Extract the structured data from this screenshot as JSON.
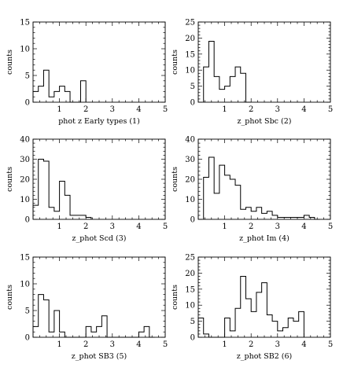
{
  "chart_data": [
    {
      "type": "histogram",
      "xlabel": "phot z Early types (1)",
      "ylabel": "counts",
      "xlim": [
        0,
        5
      ],
      "ylim": [
        0,
        15
      ],
      "xticks": [
        1,
        2,
        3,
        4,
        5
      ],
      "yticks": [
        0,
        5,
        10,
        15
      ],
      "bin_width": 0.2,
      "bin_start": 0.0,
      "values": [
        2,
        3,
        6,
        1,
        2,
        3,
        2,
        0,
        0,
        4
      ]
    },
    {
      "type": "histogram",
      "xlabel": "z_phot Sbc (2)",
      "ylabel": "counts",
      "xlim": [
        0,
        5
      ],
      "ylim": [
        0,
        25
      ],
      "xticks": [
        1,
        2,
        3,
        4,
        5
      ],
      "yticks": [
        0,
        5,
        10,
        15,
        20,
        25
      ],
      "bin_width": 0.2,
      "bin_start": 0.2,
      "values": [
        11,
        19,
        8,
        4,
        5,
        8,
        11,
        9,
        0
      ]
    },
    {
      "type": "histogram",
      "xlabel": "z_phot Scd (3)",
      "ylabel": "counts",
      "xlim": [
        0,
        5
      ],
      "ylim": [
        0,
        40
      ],
      "xticks": [
        1,
        2,
        3,
        4,
        5
      ],
      "yticks": [
        0,
        10,
        20,
        30,
        40
      ],
      "bin_width": 0.2,
      "bin_start": 0.0,
      "values": [
        7,
        30,
        29,
        6,
        4,
        19,
        12,
        2,
        2,
        2,
        1
      ]
    },
    {
      "type": "histogram",
      "xlabel": "z_phot Im (4)",
      "ylabel": "counts",
      "xlim": [
        0,
        5
      ],
      "ylim": [
        0,
        40
      ],
      "xticks": [
        1,
        2,
        3,
        4,
        5
      ],
      "yticks": [
        0,
        10,
        20,
        30,
        40
      ],
      "bin_width": 0.2,
      "bin_start": 0.2,
      "values": [
        21,
        31,
        13,
        27,
        22,
        20,
        17,
        5,
        6,
        4,
        6,
        3,
        4,
        2,
        1,
        1,
        1,
        1,
        1,
        2,
        1,
        0
      ]
    },
    {
      "type": "histogram",
      "xlabel": "z_phot SB3 (5)",
      "ylabel": "counts",
      "xlim": [
        0,
        5
      ],
      "ylim": [
        0,
        15
      ],
      "xticks": [
        1,
        2,
        3,
        4,
        5
      ],
      "yticks": [
        0,
        5,
        10,
        15
      ],
      "bin_width": 0.2,
      "bin_start": 0.0,
      "values": [
        2,
        8,
        7,
        1,
        5,
        1,
        0,
        0,
        0,
        0,
        2,
        1,
        2,
        4,
        0,
        0,
        0,
        0,
        0,
        0,
        1,
        2,
        0
      ]
    },
    {
      "type": "histogram",
      "xlabel": "z_phot SB2 (6)",
      "ylabel": "counts",
      "xlim": [
        0,
        5
      ],
      "ylim": [
        0,
        25
      ],
      "xticks": [
        1,
        2,
        3,
        4,
        5
      ],
      "yticks": [
        0,
        5,
        10,
        15,
        20,
        25
      ],
      "bin_width": 0.2,
      "bin_start": 0.0,
      "values": [
        6,
        1,
        0,
        0,
        0,
        6,
        2,
        9,
        19,
        12,
        8,
        14,
        17,
        7,
        5,
        2,
        3,
        6,
        5,
        8
      ]
    }
  ]
}
